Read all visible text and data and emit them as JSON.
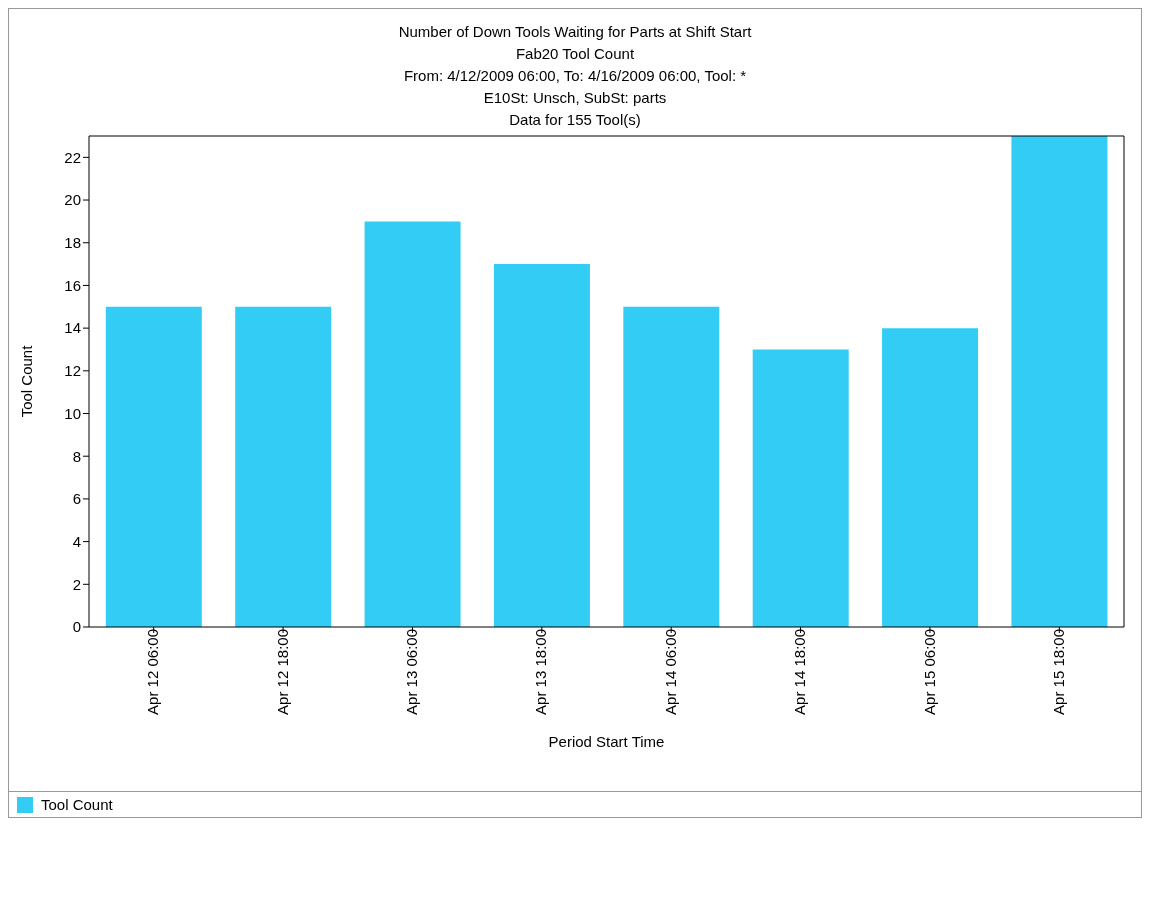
{
  "chart_data": {
    "type": "bar",
    "title": "Number of Down Tools Waiting for Parts at Shift Start",
    "subtitle": "Fab20 Tool Count\nFrom: 4/12/2009 06:00, To: 4/16/2009 06:00, Tool: *\nE10St: Unsch, SubSt: parts\nData for 155 Tool(s)",
    "xlabel": "Period Start Time",
    "ylabel": "Tool Count",
    "categories": [
      "Apr 12 06:00",
      "Apr 12 18:00",
      "Apr 13 06:00",
      "Apr 13 18:00",
      "Apr 14 06:00",
      "Apr 14 18:00",
      "Apr 15 06:00",
      "Apr 15 18:00"
    ],
    "series": [
      {
        "name": "Tool Count",
        "color": "#33ccf5",
        "values": [
          15,
          15,
          19,
          17,
          15,
          13,
          14,
          23
        ]
      }
    ],
    "ylim": [
      0,
      23
    ],
    "yticks": [
      0,
      2,
      4,
      6,
      8,
      10,
      12,
      14,
      16,
      18,
      20,
      22
    ],
    "grid": false,
    "legend": "bottom left"
  }
}
